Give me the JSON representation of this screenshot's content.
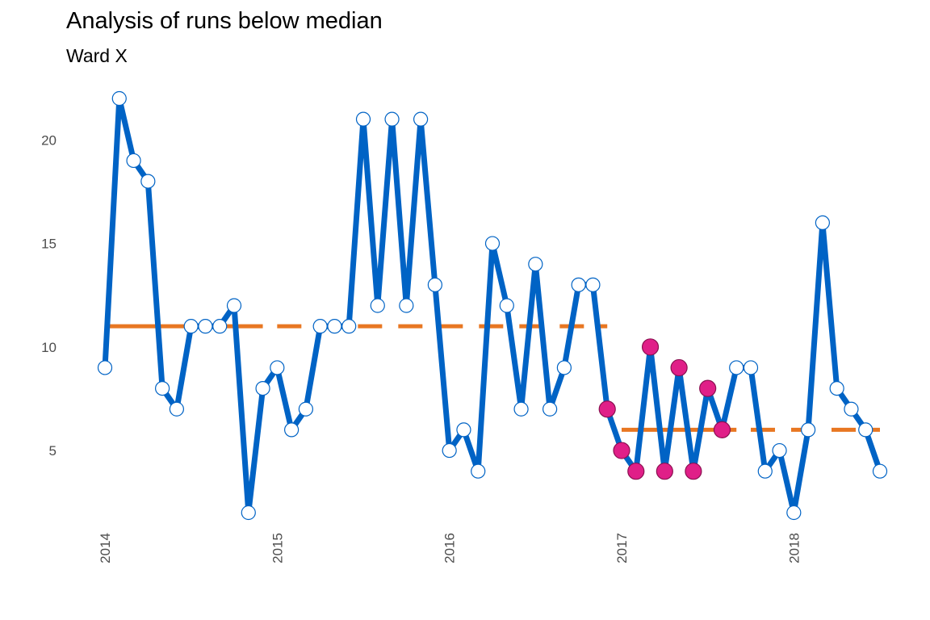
{
  "chart_data": {
    "type": "line",
    "title": "Analysis of runs below median",
    "subtitle": "Ward X",
    "xlabel": "",
    "ylabel": "",
    "ylim": [
      0.8,
      22.5
    ],
    "y_ticks": [
      5,
      10,
      15,
      20
    ],
    "x_ticks": [
      "2014",
      "2015",
      "2016",
      "2017",
      "2018"
    ],
    "x": [
      "2014-01",
      "2014-02",
      "2014-03",
      "2014-04",
      "2014-05",
      "2014-06",
      "2014-07",
      "2014-08",
      "2014-09",
      "2014-10",
      "2014-11",
      "2014-12",
      "2015-01",
      "2015-02",
      "2015-03",
      "2015-04",
      "2015-05",
      "2015-06",
      "2015-07",
      "2015-08",
      "2015-09",
      "2015-10",
      "2015-11",
      "2015-12",
      "2016-01",
      "2016-02",
      "2016-03",
      "2016-04",
      "2016-05",
      "2016-06",
      "2016-07",
      "2016-08",
      "2016-09",
      "2016-10",
      "2016-11",
      "2016-12",
      "2017-01",
      "2017-02",
      "2017-03",
      "2017-04",
      "2017-05",
      "2017-06",
      "2017-07",
      "2017-08",
      "2017-09",
      "2017-10",
      "2017-11",
      "2017-12",
      "2018-01",
      "2018-02",
      "2018-03",
      "2018-04",
      "2018-05",
      "2018-06",
      "2018-07"
    ],
    "values": [
      9,
      22,
      19,
      18,
      8,
      7,
      11,
      11,
      11,
      12,
      2,
      8,
      9,
      6,
      7,
      11,
      11,
      11,
      21,
      12,
      21,
      12,
      21,
      13,
      5,
      6,
      4,
      15,
      12,
      7,
      14,
      7,
      9,
      13,
      13,
      7,
      5,
      4,
      10,
      4,
      9,
      4,
      8,
      6,
      9,
      9,
      4,
      5,
      2,
      6,
      16,
      8,
      7,
      6,
      4
    ],
    "highlighted_points": [
      "2016-12",
      "2017-01",
      "2017-02",
      "2017-03",
      "2017-04",
      "2017-05",
      "2017-06",
      "2017-07",
      "2017-08"
    ],
    "median_segments": [
      {
        "value": 11,
        "from": "2014-01",
        "to": "2014-12",
        "style": "solid"
      },
      {
        "value": 11,
        "from": "2015-01",
        "to": "2016-12",
        "style": "dashed"
      },
      {
        "value": 6,
        "from": "2017-01",
        "to": "2017-09",
        "style": "solid"
      },
      {
        "value": 6,
        "from": "2017-10",
        "to": "2018-07",
        "style": "dashed"
      }
    ],
    "grid": false,
    "legend": "none",
    "colors": {
      "line": "#0063c5",
      "point_fill": "#ffffff",
      "point_stroke": "#0063c5",
      "highlight_fill": "#e01f88",
      "highlight_stroke": "#8a1050",
      "median": "#e87722",
      "tick_text": "#4d4d4d"
    }
  }
}
